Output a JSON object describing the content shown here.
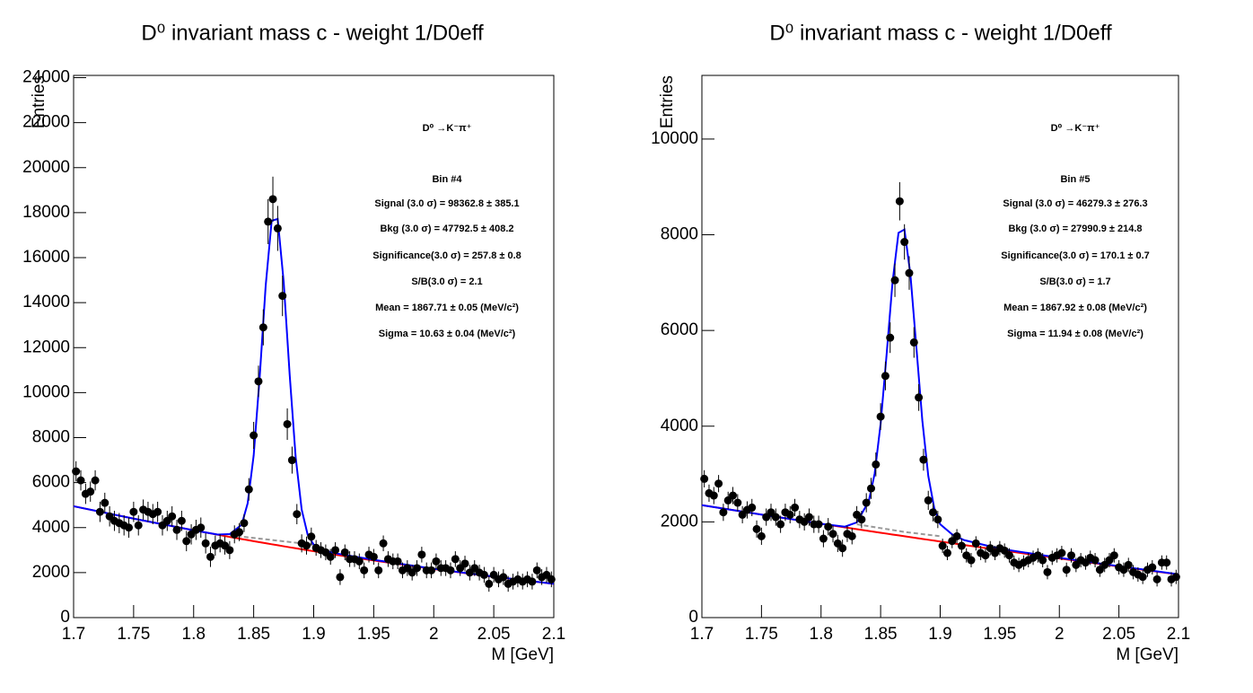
{
  "chart_data": [
    {
      "type": "scatter",
      "title": "D⁰ invariant mass c - weight 1/D0eff",
      "x_label": "M [GeV]",
      "y_label": "Entries",
      "xlim": [
        1.7,
        2.1
      ],
      "xticks": [
        1.7,
        1.75,
        1.8,
        1.85,
        1.9,
        1.95,
        2,
        2.05,
        2.1
      ],
      "ylim": [
        0,
        24100
      ],
      "yticks": [
        0,
        2000,
        4000,
        6000,
        8000,
        10000,
        12000,
        14000,
        16000,
        18000,
        20000,
        22000,
        24000
      ],
      "color": "#000000",
      "x": [
        1.702,
        1.706,
        1.71,
        1.714,
        1.718,
        1.722,
        1.726,
        1.73,
        1.734,
        1.738,
        1.742,
        1.746,
        1.75,
        1.754,
        1.758,
        1.762,
        1.766,
        1.77,
        1.774,
        1.778,
        1.782,
        1.786,
        1.79,
        1.794,
        1.798,
        1.802,
        1.806,
        1.81,
        1.814,
        1.818,
        1.822,
        1.826,
        1.83,
        1.834,
        1.838,
        1.842,
        1.846,
        1.85,
        1.854,
        1.858,
        1.862,
        1.866,
        1.87,
        1.874,
        1.878,
        1.882,
        1.886,
        1.89,
        1.894,
        1.898,
        1.902,
        1.906,
        1.91,
        1.914,
        1.918,
        1.922,
        1.926,
        1.93,
        1.934,
        1.938,
        1.942,
        1.946,
        1.95,
        1.954,
        1.958,
        1.962,
        1.966,
        1.97,
        1.974,
        1.978,
        1.982,
        1.986,
        1.99,
        1.994,
        1.998,
        2.002,
        2.006,
        2.01,
        2.014,
        2.018,
        2.022,
        2.026,
        2.03,
        2.034,
        2.038,
        2.042,
        2.046,
        2.05,
        2.054,
        2.058,
        2.062,
        2.066,
        2.07,
        2.074,
        2.078,
        2.082,
        2.086,
        2.09,
        2.094,
        2.098
      ],
      "values": [
        6500,
        6100,
        5500,
        5600,
        6100,
        4700,
        5100,
        4500,
        4300,
        4200,
        4100,
        4000,
        4700,
        4100,
        4800,
        4700,
        4600,
        4700,
        4100,
        4300,
        4500,
        3900,
        4300,
        3400,
        3700,
        3900,
        4000,
        3300,
        2700,
        3200,
        3300,
        3200,
        3000,
        3700,
        3800,
        4200,
        5700,
        8100,
        10500,
        12900,
        17600,
        18600,
        17300,
        14300,
        8600,
        7000,
        4600,
        3300,
        3200,
        3600,
        3100,
        3000,
        2900,
        2700,
        3000,
        1800,
        2900,
        2600,
        2600,
        2500,
        2100,
        2800,
        2700,
        2100,
        3300,
        2600,
        2500,
        2500,
        2100,
        2200,
        2000,
        2200,
        2800,
        2100,
        2100,
        2500,
        2200,
        2200,
        2100,
        2600,
        2200,
        2400,
        2000,
        2200,
        2000,
        1900,
        1500,
        1900,
        1700,
        1800,
        1500,
        1600,
        1700,
        1600,
        1700,
        1600,
        2100,
        1800,
        1900,
        1700
      ],
      "errors": [
        450,
        450,
        450,
        450,
        450,
        450,
        450,
        450,
        450,
        450,
        450,
        450,
        450,
        450,
        450,
        450,
        450,
        450,
        450,
        450,
        450,
        450,
        450,
        450,
        450,
        450,
        450,
        450,
        450,
        450,
        400,
        400,
        400,
        400,
        400,
        400,
        500,
        600,
        700,
        800,
        1000,
        1000,
        1000,
        900,
        700,
        600,
        450,
        400,
        400,
        400,
        350,
        350,
        350,
        350,
        350,
        350,
        350,
        350,
        350,
        350,
        350,
        350,
        350,
        350,
        350,
        350,
        350,
        350,
        350,
        350,
        350,
        350,
        350,
        350,
        350,
        350,
        350,
        350,
        350,
        350,
        350,
        350,
        350,
        350,
        350,
        350,
        350,
        350,
        350,
        350,
        350,
        350,
        350,
        350,
        350,
        350,
        350,
        350,
        350,
        350
      ],
      "lines": [
        {
          "color": "#ff0000",
          "dashed": false,
          "x": [
            1.7,
            1.75,
            1.8,
            1.82,
            1.83,
            1.84,
            1.845,
            1.85,
            1.855,
            1.86,
            1.865,
            1.87,
            1.875,
            1.88,
            1.885,
            1.89,
            1.895,
            1.9,
            1.91,
            1.92,
            1.95,
            2.0,
            2.05,
            2.1
          ],
          "values": [
            4950,
            4398,
            3881,
            3684,
            3587,
            3492,
            3445,
            3398,
            3352,
            3306,
            3260,
            3215,
            3170,
            3125,
            3081,
            3037,
            2993,
            2950,
            2864,
            2780,
            2536,
            2156,
            1811,
            1500
          ]
        },
        {
          "color": "#999999",
          "dashed": true,
          "x": [
            1.83,
            1.84,
            1.85,
            1.86,
            1.87,
            1.88,
            1.89,
            1.9
          ],
          "values": [
            3650,
            3600,
            3540,
            3480,
            3420,
            3360,
            3300,
            3250
          ]
        },
        {
          "color": "#0000ff",
          "dashed": false,
          "x": [
            1.7,
            1.75,
            1.8,
            1.82,
            1.83,
            1.84,
            1.845,
            1.85,
            1.855,
            1.86,
            1.865,
            1.87,
            1.875,
            1.88,
            1.885,
            1.89,
            1.895,
            1.9,
            1.91,
            1.92,
            1.95,
            2.0,
            2.05,
            2.1
          ],
          "values": [
            4950,
            4400,
            3880,
            3690,
            3710,
            4130,
            5080,
            7210,
            10680,
            14750,
            17640,
            17720,
            14920,
            10790,
            7120,
            4800,
            3680,
            3240,
            2960,
            2840,
            2570,
            2170,
            1820,
            1500
          ]
        }
      ],
      "annotations": [
        "D⁰ →K⁻π⁺",
        "Bin #4",
        "Signal (3.0 σ) =  98362.8 ± 385.1",
        "Bkg (3.0  σ) =  47792.5 ± 408.2",
        "Significance(3.0  σ) =  257.8 ± 0.8",
        "S/B(3.0  σ) =  2.1",
        "Mean = 1867.71 ± 0.05 (MeV/c²)",
        "Sigma = 10.63 ± 0.04 (MeV/c²)"
      ]
    },
    {
      "type": "scatter",
      "title": "D⁰ invariant mass c - weight 1/D0eff",
      "x_label": "M [GeV]",
      "y_label": "Entries",
      "xlim": [
        1.7,
        2.1
      ],
      "xticks": [
        1.7,
        1.75,
        1.8,
        1.85,
        1.9,
        1.95,
        2,
        2.05,
        2.1
      ],
      "ylim": [
        0,
        11330
      ],
      "yticks": [
        0,
        2000,
        4000,
        6000,
        8000,
        10000
      ],
      "color": "#000000",
      "x": [
        1.702,
        1.706,
        1.71,
        1.714,
        1.718,
        1.722,
        1.726,
        1.73,
        1.734,
        1.738,
        1.742,
        1.746,
        1.75,
        1.754,
        1.758,
        1.762,
        1.766,
        1.77,
        1.774,
        1.778,
        1.782,
        1.786,
        1.79,
        1.794,
        1.798,
        1.802,
        1.806,
        1.81,
        1.814,
        1.818,
        1.822,
        1.826,
        1.83,
        1.834,
        1.838,
        1.842,
        1.846,
        1.85,
        1.854,
        1.858,
        1.862,
        1.866,
        1.87,
        1.874,
        1.878,
        1.882,
        1.886,
        1.89,
        1.894,
        1.898,
        1.902,
        1.906,
        1.91,
        1.914,
        1.918,
        1.922,
        1.926,
        1.93,
        1.934,
        1.938,
        1.942,
        1.946,
        1.95,
        1.954,
        1.958,
        1.962,
        1.966,
        1.97,
        1.974,
        1.978,
        1.982,
        1.986,
        1.99,
        1.994,
        1.998,
        2.002,
        2.006,
        2.01,
        2.014,
        2.018,
        2.022,
        2.026,
        2.03,
        2.034,
        2.038,
        2.042,
        2.046,
        2.05,
        2.054,
        2.058,
        2.062,
        2.066,
        2.07,
        2.074,
        2.078,
        2.082,
        2.086,
        2.09,
        2.094,
        2.098
      ],
      "values": [
        2900,
        2600,
        2550,
        2800,
        2200,
        2450,
        2550,
        2400,
        2150,
        2250,
        2300,
        1850,
        1700,
        2100,
        2200,
        2100,
        1950,
        2200,
        2150,
        2300,
        2050,
        2000,
        2100,
        1950,
        1950,
        1650,
        1900,
        1750,
        1550,
        1450,
        1750,
        1700,
        2150,
        2050,
        2400,
        2700,
        3200,
        4200,
        5050,
        5850,
        7050,
        8700,
        7850,
        7200,
        5750,
        4600,
        3300,
        2450,
        2200,
        2050,
        1500,
        1350,
        1600,
        1700,
        1500,
        1300,
        1200,
        1550,
        1350,
        1300,
        1450,
        1350,
        1450,
        1400,
        1300,
        1150,
        1100,
        1150,
        1200,
        1250,
        1300,
        1200,
        950,
        1250,
        1300,
        1350,
        1000,
        1300,
        1100,
        1200,
        1150,
        1250,
        1200,
        1000,
        1100,
        1200,
        1300,
        1050,
        1000,
        1100,
        950,
        900,
        850,
        1000,
        1050,
        800,
        1150,
        1150,
        800,
        850
      ],
      "errors": [
        180,
        180,
        180,
        180,
        180,
        180,
        180,
        180,
        180,
        180,
        180,
        180,
        180,
        180,
        180,
        180,
        180,
        180,
        180,
        180,
        180,
        180,
        180,
        180,
        180,
        180,
        180,
        180,
        180,
        180,
        170,
        170,
        180,
        180,
        200,
        220,
        250,
        280,
        300,
        320,
        350,
        400,
        370,
        350,
        320,
        280,
        230,
        200,
        190,
        180,
        150,
        150,
        150,
        150,
        150,
        150,
        150,
        150,
        150,
        150,
        150,
        150,
        150,
        150,
        150,
        150,
        150,
        150,
        150,
        150,
        150,
        150,
        150,
        150,
        150,
        150,
        150,
        150,
        150,
        150,
        150,
        150,
        150,
        150,
        150,
        150,
        150,
        150,
        150,
        150,
        150,
        150,
        150,
        150,
        150,
        150,
        150,
        150,
        150,
        150
      ],
      "lines": [
        {
          "color": "#ff0000",
          "dashed": false,
          "x": [
            1.7,
            1.75,
            1.8,
            1.82,
            1.83,
            1.84,
            1.845,
            1.85,
            1.855,
            1.86,
            1.865,
            1.87,
            1.875,
            1.88,
            1.885,
            1.89,
            1.895,
            1.9,
            1.91,
            1.92,
            1.95,
            2.0,
            2.05,
            2.1
          ],
          "values": [
            2350,
            2153,
            1961,
            1886,
            1848,
            1811,
            1792,
            1773,
            1755,
            1736,
            1718,
            1700,
            1681,
            1663,
            1644,
            1626,
            1608,
            1590,
            1554,
            1518,
            1411,
            1236,
            1066,
            900
          ]
        },
        {
          "color": "#999999",
          "dashed": true,
          "x": [
            1.83,
            1.84,
            1.85,
            1.86,
            1.87,
            1.88,
            1.89,
            1.9
          ],
          "values": [
            1950,
            1910,
            1870,
            1830,
            1790,
            1760,
            1730,
            1700
          ]
        },
        {
          "color": "#0000ff",
          "dashed": false,
          "x": [
            1.7,
            1.75,
            1.8,
            1.82,
            1.83,
            1.84,
            1.845,
            1.85,
            1.855,
            1.86,
            1.865,
            1.87,
            1.875,
            1.88,
            1.885,
            1.89,
            1.895,
            1.9,
            1.91,
            1.92,
            1.95,
            2.0,
            2.05,
            2.1
          ],
          "values": [
            2350,
            2153,
            1961,
            1900,
            1990,
            2430,
            3010,
            4050,
            5490,
            7010,
            8040,
            8110,
            7170,
            5650,
            4120,
            2960,
            2290,
            1950,
            1740,
            1620,
            1440,
            1250,
            1075,
            905
          ]
        }
      ],
      "annotations": [
        "D⁰ →K⁻π⁺",
        "Bin #5",
        "Signal (3.0 σ) =  46279.3 ± 276.3",
        "Bkg (3.0  σ) =  27990.9 ± 214.8",
        "Significance(3.0  σ) =  170.1 ± 0.7",
        "S/B(3.0  σ) =  1.7",
        "Mean = 1867.92 ± 0.08 (MeV/c²)",
        "Sigma = 11.94 ± 0.08 (MeV/c²)"
      ]
    }
  ]
}
